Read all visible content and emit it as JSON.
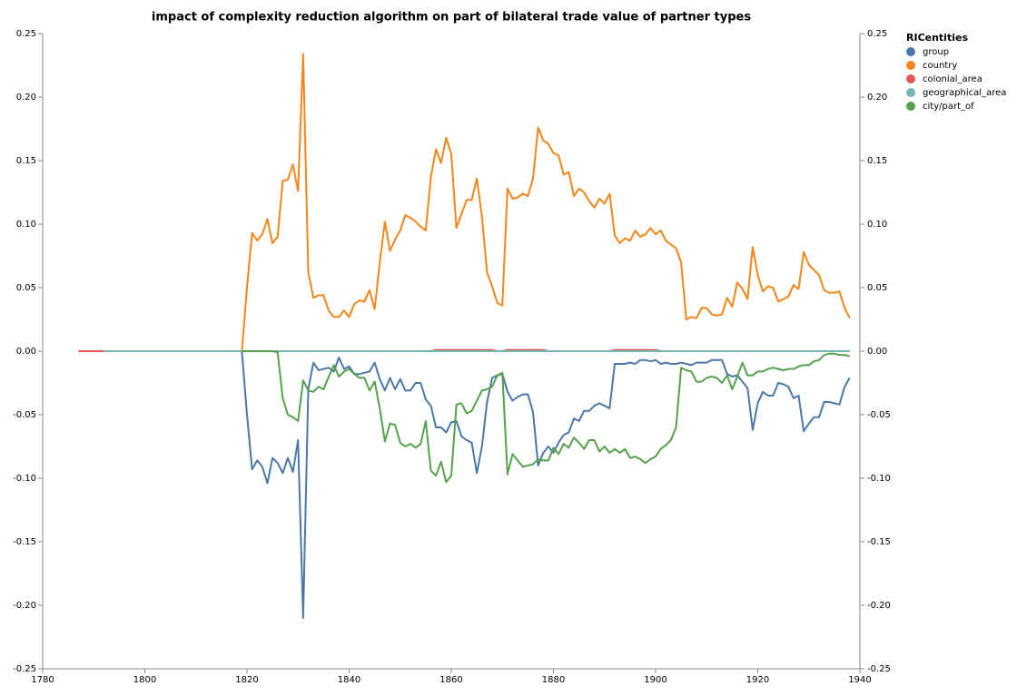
{
  "chart_data": {
    "type": "line",
    "title": "impact of complexity reduction algorithm on part of bilateral trade value of partner types",
    "legend_title": "RICentities",
    "legend_position": "top-right",
    "grid": false,
    "xlim": [
      1780,
      1940
    ],
    "xticks": [
      1780,
      1800,
      1820,
      1840,
      1860,
      1880,
      1900,
      1920,
      1940
    ],
    "ylim": [
      -0.25,
      0.25
    ],
    "yticks": [
      -0.25,
      {
        "value": -0.2,
        "label": "-0.20"
      },
      -0.15,
      {
        "value": -0.1,
        "label": "-0.10"
      },
      -0.05,
      {
        "value": 0,
        "label": "0.00"
      },
      0.05,
      {
        "value": 0.1,
        "label": "0.10"
      },
      0.15,
      {
        "value": 0.2,
        "label": "0.20"
      },
      0.25
    ],
    "y2lim": [
      -0.25,
      0.25
    ],
    "y2ticks": [
      -0.25,
      {
        "value": -0.2,
        "label": "-0.20"
      },
      -0.15,
      {
        "value": -0.1,
        "label": "-0.10"
      },
      -0.05,
      {
        "value": 0,
        "label": "0.00"
      },
      0.05,
      {
        "value": 0.1,
        "label": "0.10"
      },
      0.15,
      {
        "value": 0.2,
        "label": "0.20"
      },
      0.25
    ],
    "x": [
      1787,
      1788,
      1789,
      1790,
      1791,
      1792,
      1793,
      1794,
      1795,
      1796,
      1797,
      1798,
      1799,
      1800,
      1801,
      1802,
      1803,
      1804,
      1805,
      1806,
      1807,
      1808,
      1809,
      1810,
      1811,
      1812,
      1813,
      1814,
      1815,
      1816,
      1817,
      1818,
      1819,
      1820,
      1821,
      1822,
      1823,
      1824,
      1825,
      1826,
      1827,
      1828,
      1829,
      1830,
      1831,
      1832,
      1833,
      1834,
      1835,
      1836,
      1837,
      1838,
      1839,
      1840,
      1841,
      1842,
      1843,
      1844,
      1845,
      1846,
      1847,
      1848,
      1849,
      1850,
      1851,
      1852,
      1853,
      1854,
      1855,
      1856,
      1857,
      1858,
      1859,
      1860,
      1861,
      1862,
      1863,
      1864,
      1865,
      1866,
      1867,
      1868,
      1869,
      1870,
      1871,
      1872,
      1873,
      1874,
      1875,
      1876,
      1877,
      1878,
      1879,
      1880,
      1881,
      1882,
      1883,
      1884,
      1885,
      1886,
      1887,
      1888,
      1889,
      1890,
      1891,
      1892,
      1893,
      1894,
      1895,
      1896,
      1897,
      1898,
      1899,
      1900,
      1901,
      1902,
      1903,
      1904,
      1905,
      1906,
      1907,
      1908,
      1909,
      1910,
      1911,
      1912,
      1913,
      1914,
      1915,
      1916,
      1917,
      1918,
      1919,
      1920,
      1921,
      1922,
      1923,
      1924,
      1925,
      1926,
      1927,
      1928,
      1929,
      1930,
      1931,
      1932,
      1933,
      1934,
      1935,
      1936,
      1937,
      1938
    ],
    "series": [
      {
        "name": "group",
        "color": "#4c78a8",
        "values": [
          null,
          null,
          null,
          null,
          null,
          null,
          null,
          null,
          null,
          null,
          null,
          null,
          null,
          null,
          null,
          null,
          null,
          null,
          null,
          null,
          null,
          null,
          null,
          null,
          null,
          null,
          null,
          null,
          null,
          null,
          null,
          null,
          0,
          -0.05,
          -0.093,
          -0.086,
          -0.091,
          -0.104,
          -0.084,
          -0.088,
          -0.096,
          -0.084,
          -0.095,
          -0.07,
          -0.21,
          -0.03,
          -0.009,
          -0.015,
          -0.014,
          -0.013,
          -0.016,
          -0.005,
          -0.014,
          -0.012,
          -0.018,
          -0.018,
          -0.017,
          -0.016,
          -0.009,
          -0.022,
          -0.031,
          -0.021,
          -0.03,
          -0.022,
          -0.031,
          -0.031,
          -0.025,
          -0.025,
          -0.038,
          -0.043,
          -0.06,
          -0.06,
          -0.064,
          -0.056,
          -0.055,
          -0.067,
          -0.07,
          -0.072,
          -0.096,
          -0.075,
          -0.04,
          -0.021,
          -0.019,
          -0.018,
          -0.032,
          -0.039,
          -0.036,
          -0.034,
          -0.034,
          -0.048,
          -0.09,
          -0.08,
          -0.075,
          -0.08,
          -0.072,
          -0.066,
          -0.064,
          -0.053,
          -0.055,
          -0.047,
          -0.047,
          -0.043,
          -0.041,
          -0.043,
          -0.045,
          -0.01,
          -0.01,
          -0.01,
          -0.009,
          -0.01,
          -0.007,
          -0.007,
          -0.008,
          -0.007,
          -0.01,
          -0.009,
          -0.01,
          -0.01,
          -0.009,
          -0.01,
          -0.011,
          -0.009,
          -0.009,
          -0.009,
          -0.007,
          -0.007,
          -0.007,
          -0.018,
          -0.02,
          -0.019,
          -0.024,
          -0.029,
          -0.062,
          -0.041,
          -0.032,
          -0.035,
          -0.035,
          -0.025,
          -0.026,
          -0.028,
          -0.037,
          -0.035,
          -0.063,
          -0.057,
          -0.052,
          -0.052,
          -0.04,
          -0.04,
          -0.041,
          -0.042,
          -0.028,
          -0.021
        ]
      },
      {
        "name": "country",
        "color": "#f58518",
        "values": [
          null,
          null,
          null,
          null,
          null,
          null,
          null,
          null,
          null,
          null,
          null,
          null,
          null,
          null,
          null,
          null,
          null,
          null,
          null,
          null,
          null,
          null,
          null,
          null,
          null,
          null,
          null,
          null,
          null,
          null,
          null,
          null,
          0,
          0.05,
          0.093,
          0.087,
          0.092,
          0.104,
          0.085,
          0.09,
          0.134,
          0.135,
          0.147,
          0.126,
          0.234,
          0.062,
          0.042,
          0.044,
          0.044,
          0.032,
          0.027,
          0.027,
          0.032,
          0.027,
          0.037,
          0.04,
          0.039,
          0.048,
          0.033,
          0.07,
          0.102,
          0.079,
          0.088,
          0.095,
          0.107,
          0.105,
          0.102,
          0.098,
          0.095,
          0.137,
          0.159,
          0.148,
          0.168,
          0.155,
          0.097,
          0.108,
          0.119,
          0.119,
          0.136,
          0.106,
          0.062,
          0.051,
          0.038,
          0.036,
          0.128,
          0.12,
          0.121,
          0.124,
          0.122,
          0.136,
          0.176,
          0.166,
          0.163,
          0.156,
          0.154,
          0.139,
          0.141,
          0.122,
          0.128,
          0.125,
          0.118,
          0.113,
          0.12,
          0.116,
          0.124,
          0.091,
          0.085,
          0.089,
          0.087,
          0.095,
          0.09,
          0.092,
          0.097,
          0.092,
          0.095,
          0.087,
          0.084,
          0.081,
          0.07,
          0.025,
          0.027,
          0.026,
          0.034,
          0.034,
          0.029,
          0.028,
          0.029,
          0.042,
          0.035,
          0.054,
          0.049,
          0.041,
          0.082,
          0.06,
          0.047,
          0.051,
          0.05,
          0.039,
          0.041,
          0.043,
          0.052,
          0.049,
          0.078,
          0.068,
          0.064,
          0.06,
          0.048,
          0.046,
          0.046,
          0.047,
          0.034,
          0.026
        ]
      },
      {
        "name": "colonial_area",
        "color": "#e45756",
        "values": [
          0,
          0,
          0,
          0,
          0,
          0,
          0,
          0,
          0,
          0,
          0,
          0,
          0,
          0,
          0,
          0,
          0,
          0,
          0,
          0,
          0,
          0,
          0,
          0,
          0,
          0,
          0,
          0,
          0,
          0,
          0,
          0,
          0,
          0,
          0,
          0,
          0,
          0,
          0,
          0,
          0,
          0,
          0,
          0,
          0,
          0,
          0,
          0,
          0,
          0,
          0,
          0,
          0,
          0,
          0,
          0,
          0,
          0,
          0,
          0,
          0,
          0,
          0,
          0,
          0,
          0,
          0,
          0,
          0,
          0,
          0.001,
          0.001,
          0.001,
          0.001,
          0.001,
          0.001,
          0.001,
          0.001,
          0.001,
          0.001,
          0.001,
          0.001,
          0,
          0,
          0.001,
          0.001,
          0.001,
          0.001,
          0.001,
          0.001,
          0.001,
          0.001,
          0,
          0,
          0,
          0,
          0,
          0,
          0,
          0,
          0,
          0,
          0,
          0,
          0,
          0.001,
          0.001,
          0.001,
          0.001,
          0.001,
          0.001,
          0.001,
          0.001,
          0.001,
          0,
          0,
          0,
          0,
          0,
          0,
          0,
          0,
          0,
          0,
          0,
          0,
          0,
          0,
          0,
          0,
          0,
          0,
          0,
          0,
          0,
          0,
          0,
          0,
          0,
          0,
          0,
          0,
          0,
          0,
          0,
          0,
          0,
          0,
          0,
          0,
          0,
          0
        ]
      },
      {
        "name": "geographical_area",
        "color": "#72b7b2",
        "values": [
          null,
          null,
          null,
          null,
          null,
          0,
          0,
          0,
          0,
          0,
          0,
          0,
          0,
          0,
          0,
          0,
          0,
          0,
          0,
          0,
          0,
          0,
          0,
          0,
          0,
          0,
          0,
          0,
          0,
          0,
          0,
          0,
          0,
          0,
          0,
          0,
          0,
          0,
          0,
          0,
          0,
          0,
          0,
          0,
          0,
          0,
          0,
          0,
          0,
          0,
          0,
          0,
          0,
          0,
          0,
          0,
          0,
          0,
          0,
          0,
          0,
          0,
          0,
          0,
          0,
          0,
          0,
          0,
          0,
          0,
          0,
          0,
          0,
          0,
          0,
          0,
          0,
          0,
          0,
          0,
          0,
          0,
          0,
          0,
          0,
          0,
          0,
          0,
          0,
          0,
          0,
          0,
          0,
          0,
          0,
          0,
          0,
          0,
          0,
          0,
          0,
          0,
          0,
          0,
          0,
          0,
          0,
          0,
          0,
          0,
          0,
          0,
          0,
          0,
          0,
          0,
          0,
          0,
          0,
          0,
          0,
          0,
          0,
          0,
          0,
          0,
          0,
          0,
          0,
          0,
          0,
          0,
          0,
          0,
          0,
          0,
          0,
          0,
          0,
          0,
          0,
          0,
          0,
          0,
          0,
          0,
          0,
          0,
          0,
          0,
          0,
          0
        ]
      },
      {
        "name": "city/part_of",
        "color": "#54a24b",
        "values": [
          null,
          null,
          null,
          null,
          null,
          null,
          null,
          null,
          null,
          null,
          null,
          null,
          null,
          null,
          null,
          null,
          null,
          null,
          null,
          null,
          null,
          null,
          null,
          null,
          null,
          null,
          null,
          null,
          null,
          null,
          null,
          null,
          0,
          0,
          0,
          0,
          0,
          0,
          0,
          -0.001,
          -0.037,
          -0.05,
          -0.052,
          -0.055,
          -0.023,
          -0.031,
          -0.032,
          -0.028,
          -0.03,
          -0.02,
          -0.011,
          -0.02,
          -0.016,
          -0.014,
          -0.018,
          -0.021,
          -0.021,
          -0.031,
          -0.024,
          -0.045,
          -0.071,
          -0.057,
          -0.058,
          -0.072,
          -0.075,
          -0.073,
          -0.076,
          -0.073,
          -0.055,
          -0.094,
          -0.098,
          -0.087,
          -0.103,
          -0.098,
          -0.042,
          -0.041,
          -0.049,
          -0.047,
          -0.039,
          -0.031,
          -0.03,
          -0.028,
          -0.019,
          -0.017,
          -0.097,
          -0.081,
          -0.086,
          -0.091,
          -0.09,
          -0.089,
          -0.085,
          -0.086,
          -0.086,
          -0.076,
          -0.081,
          -0.073,
          -0.076,
          -0.068,
          -0.072,
          -0.077,
          -0.07,
          -0.07,
          -0.079,
          -0.075,
          -0.08,
          -0.077,
          -0.08,
          -0.077,
          -0.084,
          -0.083,
          -0.085,
          -0.088,
          -0.085,
          -0.083,
          -0.077,
          -0.074,
          -0.07,
          -0.06,
          -0.013,
          -0.015,
          -0.016,
          -0.024,
          -0.024,
          -0.021,
          -0.02,
          -0.021,
          -0.025,
          -0.019,
          -0.03,
          -0.02,
          -0.009,
          -0.019,
          -0.019,
          -0.016,
          -0.016,
          -0.014,
          -0.013,
          -0.014,
          -0.015,
          -0.014,
          -0.014,
          -0.012,
          -0.011,
          -0.011,
          -0.008,
          -0.007,
          -0.003,
          -0.002,
          -0.002,
          -0.003,
          -0.003,
          -0.004
        ]
      }
    ]
  }
}
